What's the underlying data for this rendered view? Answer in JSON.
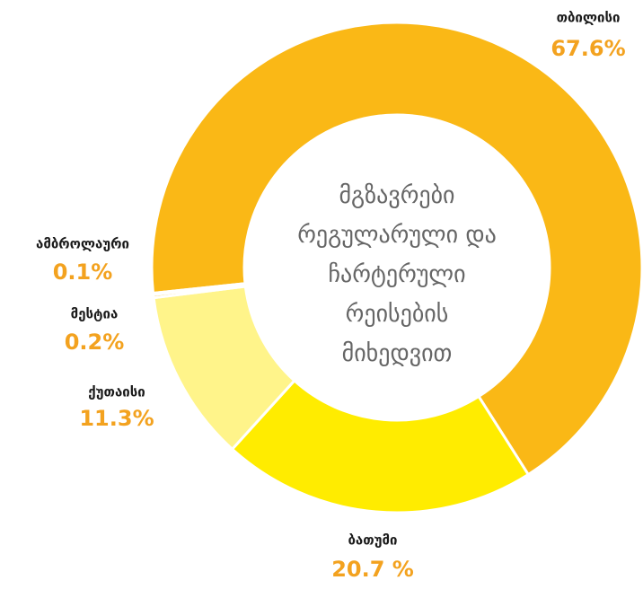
{
  "chart_data": {
    "type": "donut",
    "title": "მგზავრები\nრეგულარული და\nჩარტერული\nრეისების\nმიხედვით",
    "categories": [
      "თბილისი",
      "ბათუმი",
      "ქუთაისი",
      "მესტია",
      "ამბროლაური"
    ],
    "values": [
      67.6,
      20.7,
      11.3,
      0.2,
      0.1
    ],
    "value_labels": [
      "67.6%",
      "20.7 %",
      "11.3%",
      "0.2%",
      "0.1%"
    ],
    "colors": [
      "#fab816",
      "#ffec00",
      "#fff48a",
      "#f6c23a",
      "#f6c23a"
    ]
  }
}
